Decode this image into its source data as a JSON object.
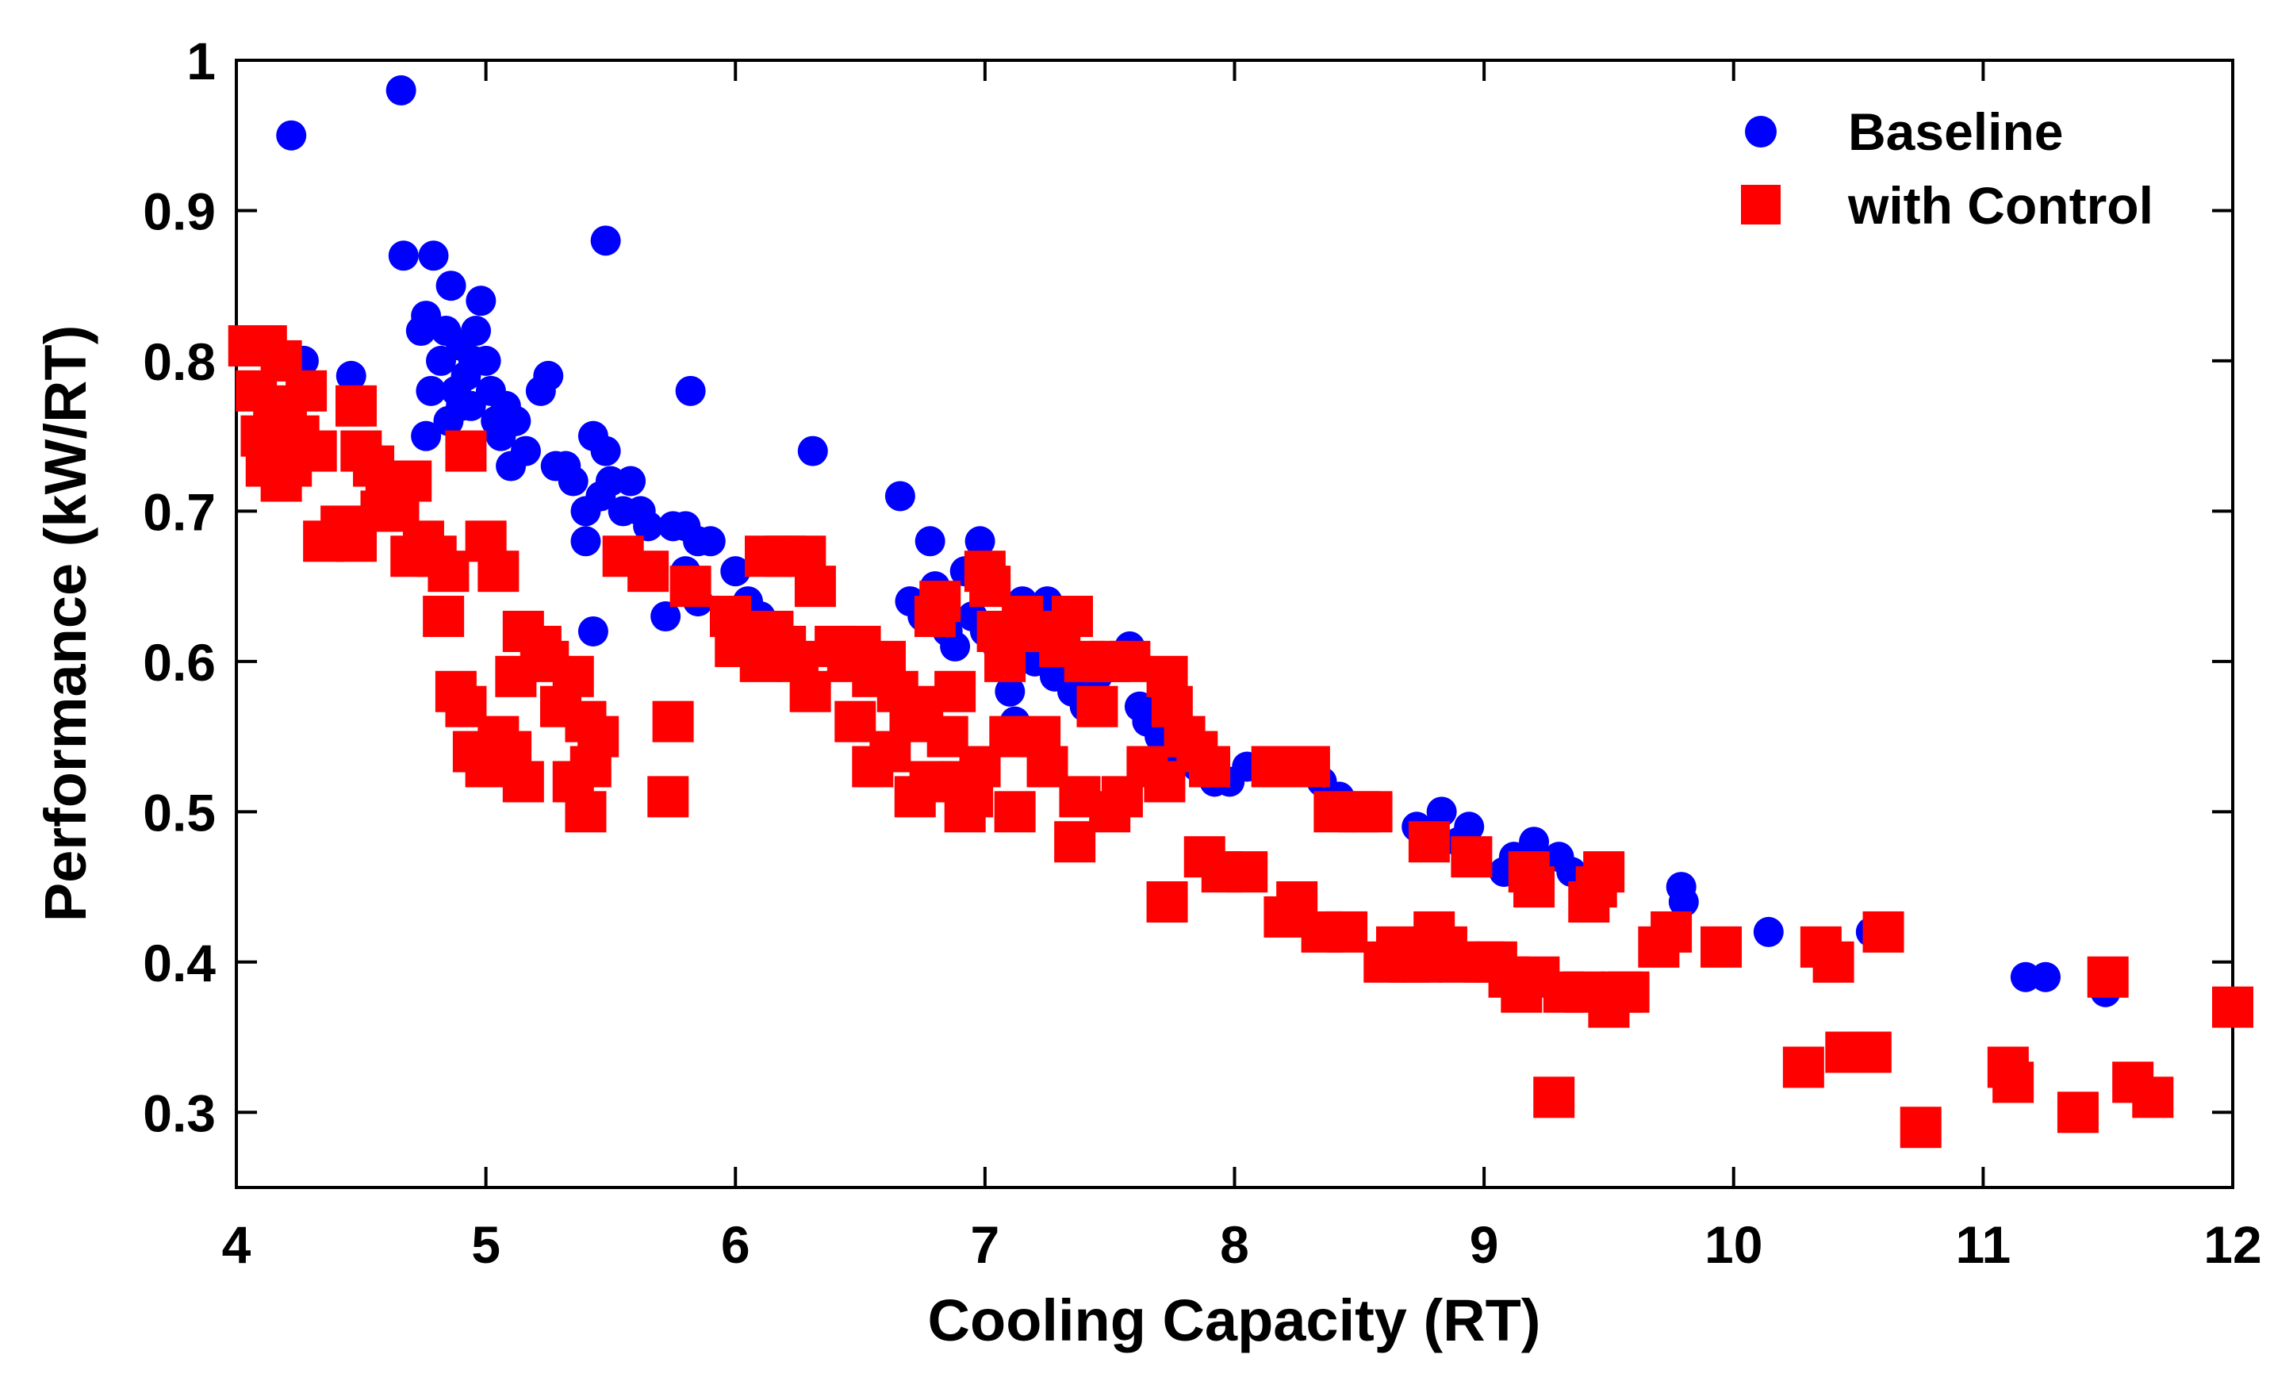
{
  "chart_data": {
    "type": "scatter",
    "title": "",
    "xlabel": "Cooling Capacity (RT)",
    "ylabel": "Performance (kW/RT)",
    "xlim": [
      4,
      12
    ],
    "ylim": [
      0.25,
      1.0
    ],
    "xticks": [
      4,
      5,
      6,
      7,
      8,
      9,
      10,
      11,
      12
    ],
    "yticks": [
      0.3,
      0.4,
      0.5,
      0.6,
      0.7,
      0.8,
      0.9,
      1.0
    ],
    "xtick_labels": [
      "4",
      "5",
      "6",
      "7",
      "8",
      "9",
      "10",
      "11",
      "12"
    ],
    "ytick_labels": [
      "0.3",
      "0.4",
      "0.5",
      "0.6",
      "0.7",
      "0.8",
      "0.9",
      "1"
    ],
    "grid": false,
    "legend_position": "top-right",
    "series": [
      {
        "name": "Baseline",
        "marker": "circle",
        "color": "#0000ff",
        "points": [
          [
            4.22,
            0.95
          ],
          [
            4.66,
            0.98
          ],
          [
            4.27,
            0.8
          ],
          [
            4.46,
            0.79
          ],
          [
            4.67,
            0.87
          ],
          [
            4.79,
            0.87
          ],
          [
            4.76,
            0.83
          ],
          [
            4.86,
            0.85
          ],
          [
            4.74,
            0.82
          ],
          [
            4.78,
            0.78
          ],
          [
            4.82,
            0.8
          ],
          [
            4.85,
            0.76
          ],
          [
            4.76,
            0.75
          ],
          [
            4.88,
            0.78
          ],
          [
            4.9,
            0.81
          ],
          [
            4.92,
            0.79
          ],
          [
            4.94,
            0.77
          ],
          [
            4.96,
            0.82
          ],
          [
            4.98,
            0.84
          ],
          [
            5.0,
            0.8
          ],
          [
            5.02,
            0.78
          ],
          [
            5.04,
            0.76
          ],
          [
            4.84,
            0.82
          ],
          [
            4.9,
            0.77
          ],
          [
            4.95,
            0.8
          ],
          [
            5.06,
            0.75
          ],
          [
            5.08,
            0.77
          ],
          [
            5.12,
            0.76
          ],
          [
            5.1,
            0.73
          ],
          [
            5.16,
            0.74
          ],
          [
            5.22,
            0.78
          ],
          [
            5.25,
            0.79
          ],
          [
            5.28,
            0.73
          ],
          [
            5.32,
            0.73
          ],
          [
            5.35,
            0.72
          ],
          [
            5.4,
            0.7
          ],
          [
            5.43,
            0.75
          ],
          [
            5.46,
            0.71
          ],
          [
            5.48,
            0.74
          ],
          [
            5.5,
            0.72
          ],
          [
            5.55,
            0.7
          ],
          [
            5.58,
            0.72
          ],
          [
            5.62,
            0.7
          ],
          [
            5.65,
            0.69
          ],
          [
            5.4,
            0.68
          ],
          [
            5.43,
            0.62
          ],
          [
            5.48,
            0.88
          ],
          [
            5.75,
            0.69
          ],
          [
            5.8,
            0.69
          ],
          [
            5.82,
            0.78
          ],
          [
            5.85,
            0.68
          ],
          [
            5.9,
            0.68
          ],
          [
            5.72,
            0.63
          ],
          [
            5.8,
            0.66
          ],
          [
            5.85,
            0.64
          ],
          [
            6.0,
            0.66
          ],
          [
            6.05,
            0.64
          ],
          [
            6.1,
            0.63
          ],
          [
            6.31,
            0.74
          ],
          [
            6.66,
            0.71
          ],
          [
            6.78,
            0.68
          ],
          [
            6.7,
            0.64
          ],
          [
            6.75,
            0.63
          ],
          [
            6.8,
            0.65
          ],
          [
            6.85,
            0.62
          ],
          [
            6.88,
            0.61
          ],
          [
            6.92,
            0.66
          ],
          [
            6.95,
            0.63
          ],
          [
            6.98,
            0.68
          ],
          [
            7.0,
            0.62
          ],
          [
            7.05,
            0.61
          ],
          [
            7.08,
            0.6
          ],
          [
            7.1,
            0.58
          ],
          [
            7.12,
            0.56
          ],
          [
            7.15,
            0.64
          ],
          [
            7.18,
            0.63
          ],
          [
            7.2,
            0.6
          ],
          [
            7.22,
            0.61
          ],
          [
            7.25,
            0.64
          ],
          [
            7.28,
            0.59
          ],
          [
            7.3,
            0.62
          ],
          [
            7.35,
            0.58
          ],
          [
            7.4,
            0.57
          ],
          [
            7.45,
            0.59
          ],
          [
            7.5,
            0.6
          ],
          [
            7.58,
            0.61
          ],
          [
            7.62,
            0.57
          ],
          [
            7.65,
            0.56
          ],
          [
            7.7,
            0.55
          ],
          [
            7.75,
            0.54
          ],
          [
            7.8,
            0.55
          ],
          [
            7.85,
            0.53
          ],
          [
            7.92,
            0.52
          ],
          [
            7.98,
            0.52
          ],
          [
            8.05,
            0.53
          ],
          [
            8.2,
            0.53
          ],
          [
            8.35,
            0.52
          ],
          [
            8.42,
            0.51
          ],
          [
            8.45,
            0.5
          ],
          [
            8.73,
            0.49
          ],
          [
            8.83,
            0.5
          ],
          [
            8.94,
            0.49
          ],
          [
            8.9,
            0.48
          ],
          [
            9.08,
            0.46
          ],
          [
            9.12,
            0.47
          ],
          [
            9.2,
            0.48
          ],
          [
            9.3,
            0.47
          ],
          [
            9.35,
            0.46
          ],
          [
            9.79,
            0.45
          ],
          [
            9.8,
            0.44
          ],
          [
            10.14,
            0.42
          ],
          [
            10.55,
            0.42
          ],
          [
            11.17,
            0.39
          ],
          [
            11.25,
            0.39
          ],
          [
            11.49,
            0.38
          ]
        ]
      },
      {
        "name": "with Control",
        "marker": "square",
        "color": "#ff0000",
        "points": [
          [
            4.05,
            0.81
          ],
          [
            4.12,
            0.81
          ],
          [
            4.18,
            0.8
          ],
          [
            4.08,
            0.78
          ],
          [
            4.15,
            0.77
          ],
          [
            4.2,
            0.76
          ],
          [
            4.1,
            0.75
          ],
          [
            4.16,
            0.74
          ],
          [
            4.22,
            0.73
          ],
          [
            4.12,
            0.73
          ],
          [
            4.18,
            0.72
          ],
          [
            4.28,
            0.78
          ],
          [
            4.25,
            0.75
          ],
          [
            4.32,
            0.74
          ],
          [
            4.48,
            0.77
          ],
          [
            4.5,
            0.74
          ],
          [
            4.55,
            0.73
          ],
          [
            4.6,
            0.71
          ],
          [
            4.65,
            0.7
          ],
          [
            4.7,
            0.72
          ],
          [
            4.58,
            0.7
          ],
          [
            4.35,
            0.68
          ],
          [
            4.42,
            0.69
          ],
          [
            4.48,
            0.68
          ],
          [
            4.75,
            0.68
          ],
          [
            4.8,
            0.67
          ],
          [
            4.85,
            0.66
          ],
          [
            4.7,
            0.67
          ],
          [
            4.92,
            0.74
          ],
          [
            5.0,
            0.68
          ],
          [
            5.05,
            0.66
          ],
          [
            4.83,
            0.63
          ],
          [
            4.88,
            0.58
          ],
          [
            4.92,
            0.57
          ],
          [
            4.95,
            0.54
          ],
          [
            5.0,
            0.53
          ],
          [
            5.05,
            0.55
          ],
          [
            5.1,
            0.54
          ],
          [
            5.15,
            0.52
          ],
          [
            5.12,
            0.59
          ],
          [
            5.15,
            0.62
          ],
          [
            5.22,
            0.61
          ],
          [
            5.25,
            0.6
          ],
          [
            5.3,
            0.57
          ],
          [
            5.35,
            0.59
          ],
          [
            5.4,
            0.56
          ],
          [
            5.42,
            0.53
          ],
          [
            5.45,
            0.55
          ],
          [
            5.35,
            0.52
          ],
          [
            5.4,
            0.5
          ],
          [
            5.55,
            0.67
          ],
          [
            5.65,
            0.66
          ],
          [
            5.75,
            0.56
          ],
          [
            5.73,
            0.51
          ],
          [
            5.82,
            0.65
          ],
          [
            5.98,
            0.63
          ],
          [
            6.0,
            0.61
          ],
          [
            6.05,
            0.62
          ],
          [
            6.1,
            0.6
          ],
          [
            6.12,
            0.67
          ],
          [
            6.2,
            0.67
          ],
          [
            6.28,
            0.67
          ],
          [
            6.15,
            0.62
          ],
          [
            6.2,
            0.61
          ],
          [
            6.25,
            0.6
          ],
          [
            6.3,
            0.58
          ],
          [
            6.32,
            0.65
          ],
          [
            6.4,
            0.61
          ],
          [
            6.45,
            0.6
          ],
          [
            6.5,
            0.61
          ],
          [
            6.55,
            0.59
          ],
          [
            6.6,
            0.6
          ],
          [
            6.48,
            0.56
          ],
          [
            6.55,
            0.53
          ],
          [
            6.62,
            0.54
          ],
          [
            6.65,
            0.58
          ],
          [
            6.7,
            0.56
          ],
          [
            6.75,
            0.57
          ],
          [
            6.72,
            0.51
          ],
          [
            6.78,
            0.52
          ],
          [
            6.8,
            0.63
          ],
          [
            6.82,
            0.64
          ],
          [
            6.85,
            0.55
          ],
          [
            6.88,
            0.58
          ],
          [
            6.9,
            0.52
          ],
          [
            6.92,
            0.5
          ],
          [
            6.95,
            0.51
          ],
          [
            6.98,
            0.53
          ],
          [
            7.0,
            0.66
          ],
          [
            7.02,
            0.65
          ],
          [
            7.05,
            0.62
          ],
          [
            7.08,
            0.6
          ],
          [
            7.1,
            0.55
          ],
          [
            7.12,
            0.5
          ],
          [
            7.15,
            0.63
          ],
          [
            7.2,
            0.62
          ],
          [
            7.22,
            0.55
          ],
          [
            7.25,
            0.53
          ],
          [
            7.3,
            0.61
          ],
          [
            7.35,
            0.63
          ],
          [
            7.38,
            0.51
          ],
          [
            7.4,
            0.6
          ],
          [
            7.45,
            0.57
          ],
          [
            7.5,
            0.6
          ],
          [
            7.55,
            0.51
          ],
          [
            7.58,
            0.6
          ],
          [
            7.36,
            0.48
          ],
          [
            7.5,
            0.5
          ],
          [
            7.73,
            0.59
          ],
          [
            7.75,
            0.57
          ],
          [
            7.8,
            0.55
          ],
          [
            7.85,
            0.54
          ],
          [
            7.9,
            0.53
          ],
          [
            7.72,
            0.52
          ],
          [
            7.65,
            0.53
          ],
          [
            7.73,
            0.44
          ],
          [
            7.88,
            0.47
          ],
          [
            7.95,
            0.46
          ],
          [
            8.05,
            0.46
          ],
          [
            8.15,
            0.53
          ],
          [
            8.2,
            0.43
          ],
          [
            8.25,
            0.44
          ],
          [
            8.3,
            0.53
          ],
          [
            8.35,
            0.42
          ],
          [
            8.4,
            0.5
          ],
          [
            8.45,
            0.42
          ],
          [
            8.5,
            0.5
          ],
          [
            8.55,
            0.5
          ],
          [
            8.6,
            0.4
          ],
          [
            8.65,
            0.41
          ],
          [
            8.7,
            0.4
          ],
          [
            8.75,
            0.4
          ],
          [
            8.78,
            0.48
          ],
          [
            8.8,
            0.42
          ],
          [
            8.85,
            0.41
          ],
          [
            8.9,
            0.4
          ],
          [
            8.95,
            0.47
          ],
          [
            9.0,
            0.4
          ],
          [
            9.05,
            0.4
          ],
          [
            9.1,
            0.39
          ],
          [
            9.15,
            0.38
          ],
          [
            9.18,
            0.46
          ],
          [
            9.2,
            0.45
          ],
          [
            9.22,
            0.39
          ],
          [
            9.28,
            0.31
          ],
          [
            9.32,
            0.38
          ],
          [
            9.4,
            0.38
          ],
          [
            9.42,
            0.44
          ],
          [
            9.45,
            0.45
          ],
          [
            9.48,
            0.46
          ],
          [
            9.5,
            0.37
          ],
          [
            9.55,
            0.38
          ],
          [
            9.58,
            0.38
          ],
          [
            9.7,
            0.41
          ],
          [
            9.75,
            0.42
          ],
          [
            9.95,
            0.41
          ],
          [
            10.28,
            0.33
          ],
          [
            10.35,
            0.41
          ],
          [
            10.4,
            0.4
          ],
          [
            10.45,
            0.34
          ],
          [
            10.55,
            0.34
          ],
          [
            10.6,
            0.42
          ],
          [
            10.75,
            0.29
          ],
          [
            11.1,
            0.33
          ],
          [
            11.12,
            0.32
          ],
          [
            11.38,
            0.3
          ],
          [
            11.5,
            0.39
          ],
          [
            11.6,
            0.32
          ],
          [
            11.68,
            0.31
          ],
          [
            12.0,
            0.37
          ]
        ]
      }
    ]
  }
}
